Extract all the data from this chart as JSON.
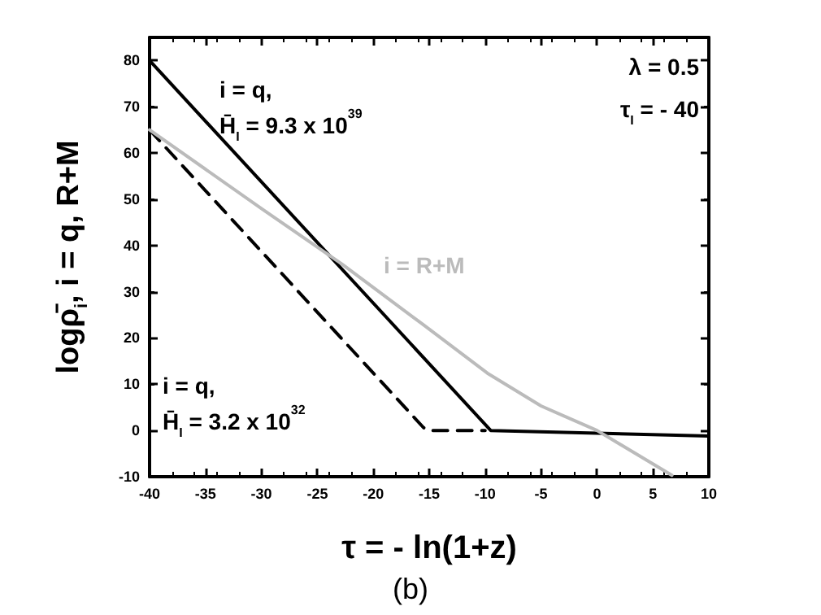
{
  "chart_data": {
    "type": "line",
    "title": "(b)",
    "xlabel": "τ = - ln(1+z)",
    "ylabel": "logρ̄$_{i}$, i = q, R+M",
    "series": [
      {
        "name": "i = q, H̄$_{I}$ = 9.3 x 10$^{39}$",
        "color": "#000000",
        "line_style": "solid",
        "x": [
          -40,
          -9.5,
          10
        ],
        "values": [
          80,
          0,
          -1.2
        ]
      },
      {
        "name": "i = q, H̄$_{I}$ = 3.2 x 10$^{32}$",
        "color": "#000000",
        "line_style": "dashed",
        "x": [
          -40,
          -15.5,
          -15,
          -10
        ],
        "values": [
          65,
          0.6,
          0,
          0
        ]
      },
      {
        "name": "i = R+M",
        "color": "#bbbbbb",
        "line_style": "solid",
        "x": [
          -40,
          -30,
          -22.8,
          -15.6,
          -9.8,
          -5,
          0,
          6.7
        ],
        "values": [
          65,
          48,
          36,
          23,
          12.4,
          5.3,
          0,
          -9.7
        ]
      }
    ],
    "annotations": [
      "λ = 0.5",
      "τ$_{I}$ = - 40"
    ],
    "xlim": [
      -40,
      10
    ],
    "xticks": [
      -40,
      -35,
      -30,
      -25,
      -20,
      -15,
      -10,
      -5,
      0,
      5,
      10
    ],
    "ylim": [
      -10,
      85
    ],
    "yticks": [
      -10,
      0,
      10,
      20,
      30,
      40,
      50,
      60,
      70,
      80
    ],
    "grid": false,
    "legend": false,
    "marker": "none"
  }
}
